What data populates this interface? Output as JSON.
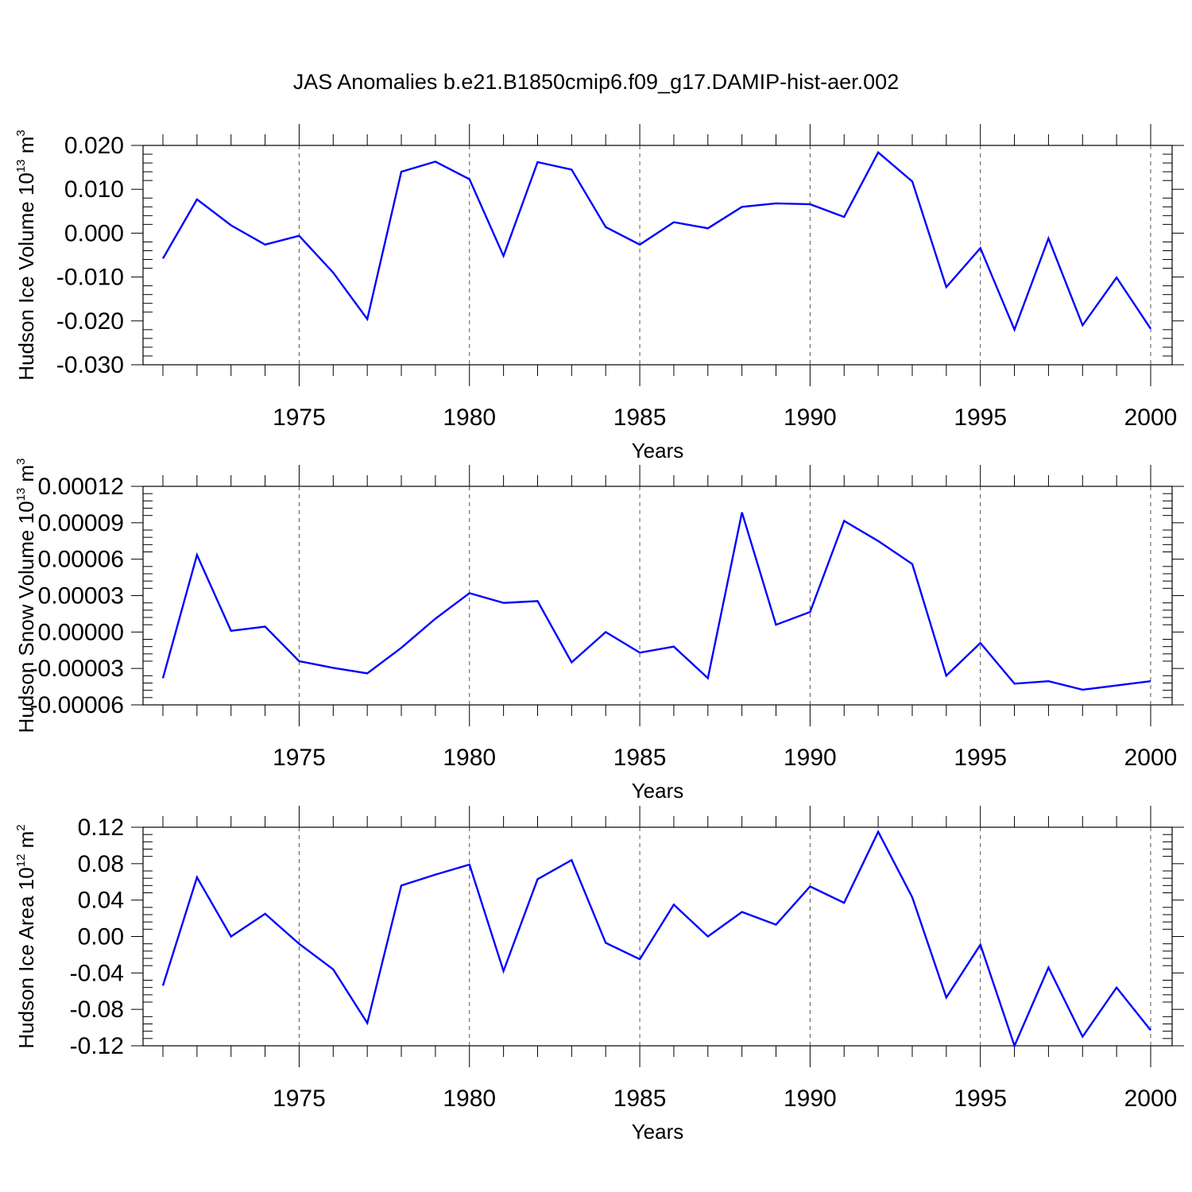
{
  "title": "JAS Anomalies b.e21.B1850cmip6.f09_g17.DAMIP-hist-aer.002",
  "colors": {
    "line": "#0000ff",
    "axis": "#000000",
    "grid": "#555555"
  },
  "chart_data": [
    {
      "type": "line",
      "ylabel_main": "Hudson Ice Volume 10",
      "ylabel_sup": "13",
      "ylabel_unit": " m",
      "ylabel_unit_sup": "3",
      "xlabel": "Years",
      "xlim": [
        1971,
        2000
      ],
      "ylim": [
        -0.03,
        0.02
      ],
      "x_ticks": [
        1975,
        1980,
        1985,
        1990,
        1995,
        2000
      ],
      "x_tick_labels": [
        "1975",
        "1980",
        "1985",
        "1990",
        "1995",
        "2000"
      ],
      "y_ticks": [
        -0.03,
        -0.02,
        -0.01,
        0.0,
        0.01,
        0.02
      ],
      "y_tick_labels": [
        "-0.030",
        "-0.020",
        "-0.010",
        "0.000",
        "0.010",
        "0.020"
      ],
      "x": [
        1971,
        1972,
        1973,
        1974,
        1975,
        1976,
        1977,
        1978,
        1979,
        1980,
        1981,
        1982,
        1983,
        1984,
        1985,
        1986,
        1987,
        1988,
        1989,
        1990,
        1991,
        1992,
        1993,
        1994,
        1995,
        1996,
        1997,
        1998,
        1999,
        2000
      ],
      "y": [
        -0.0058,
        0.0077,
        0.0018,
        -0.0026,
        -0.0006,
        -0.009,
        -0.0196,
        0.014,
        0.0163,
        0.0123,
        -0.0052,
        0.0162,
        0.0145,
        0.0014,
        -0.0026,
        0.0025,
        0.0011,
        0.006,
        0.0068,
        0.0066,
        0.0037,
        0.0184,
        0.0118,
        -0.0123,
        -0.0034,
        -0.022,
        -0.0012,
        -0.021,
        -0.0101,
        -0.0218
      ]
    },
    {
      "type": "line",
      "ylabel_main": "Hudson Snow Volume 10",
      "ylabel_sup": "13",
      "ylabel_unit": " m",
      "ylabel_unit_sup": "3",
      "xlabel": "Years",
      "xlim": [
        1971,
        2000
      ],
      "ylim": [
        -6e-05,
        0.00012
      ],
      "x_ticks": [
        1975,
        1980,
        1985,
        1990,
        1995,
        2000
      ],
      "x_tick_labels": [
        "1975",
        "1980",
        "1985",
        "1990",
        "1995",
        "2000"
      ],
      "y_ticks": [
        -6e-05,
        -3e-05,
        0.0,
        3e-05,
        6e-05,
        9e-05,
        0.00012
      ],
      "y_tick_labels": [
        "-0.00006",
        "-0.00003",
        "0.00000",
        "0.00003",
        "0.00006",
        "0.00009",
        "0.00012"
      ],
      "x": [
        1971,
        1972,
        1973,
        1974,
        1975,
        1976,
        1977,
        1978,
        1979,
        1980,
        1981,
        1982,
        1983,
        1984,
        1985,
        1986,
        1987,
        1988,
        1989,
        1990,
        1991,
        1992,
        1993,
        1994,
        1995,
        1996,
        1997,
        1998,
        1999,
        2000
      ],
      "y": [
        -3.8e-05,
        6.35e-05,
        1e-06,
        4.5e-06,
        -2.4e-05,
        -2.95e-05,
        -3.4e-05,
        -1.3e-05,
        1.1e-05,
        3.2e-05,
        2.4e-05,
        2.55e-05,
        -2.5e-05,
        0.0,
        -1.7e-05,
        -1.2e-05,
        -3.8e-05,
        9.85e-05,
        6e-06,
        1.65e-05,
        9.15e-05,
        7.5e-05,
        5.6e-05,
        -3.6e-05,
        -9e-06,
        -4.25e-05,
        -4.05e-05,
        -4.75e-05,
        -4.4e-05,
        -4.05e-05
      ]
    },
    {
      "type": "line",
      "ylabel_main": "Hudson Ice Area 10",
      "ylabel_sup": "12",
      "ylabel_unit": " m",
      "ylabel_unit_sup": "2",
      "xlabel": "Years",
      "xlim": [
        1971,
        2000
      ],
      "ylim": [
        -0.12,
        0.12
      ],
      "x_ticks": [
        1975,
        1980,
        1985,
        1990,
        1995,
        2000
      ],
      "x_tick_labels": [
        "1975",
        "1980",
        "1985",
        "1990",
        "1995",
        "2000"
      ],
      "y_ticks": [
        -0.12,
        -0.08,
        -0.04,
        0.0,
        0.04,
        0.08,
        0.12
      ],
      "y_tick_labels": [
        "-0.12",
        "-0.08",
        "-0.04",
        "0.00",
        "0.04",
        "0.08",
        "0.12"
      ],
      "x": [
        1971,
        1972,
        1973,
        1974,
        1975,
        1976,
        1977,
        1978,
        1979,
        1980,
        1981,
        1982,
        1983,
        1984,
        1985,
        1986,
        1987,
        1988,
        1989,
        1990,
        1991,
        1992,
        1993,
        1994,
        1995,
        1996,
        1997,
        1998,
        1999,
        2000
      ],
      "y": [
        -0.054,
        0.065,
        0.0,
        0.025,
        -0.008,
        -0.036,
        -0.095,
        0.056,
        0.068,
        0.079,
        -0.038,
        0.063,
        0.084,
        -0.007,
        -0.025,
        0.035,
        0.0,
        0.027,
        0.013,
        0.055,
        0.037,
        0.115,
        0.043,
        -0.067,
        -0.009,
        -0.12,
        -0.034,
        -0.11,
        -0.056,
        -0.103
      ]
    }
  ]
}
